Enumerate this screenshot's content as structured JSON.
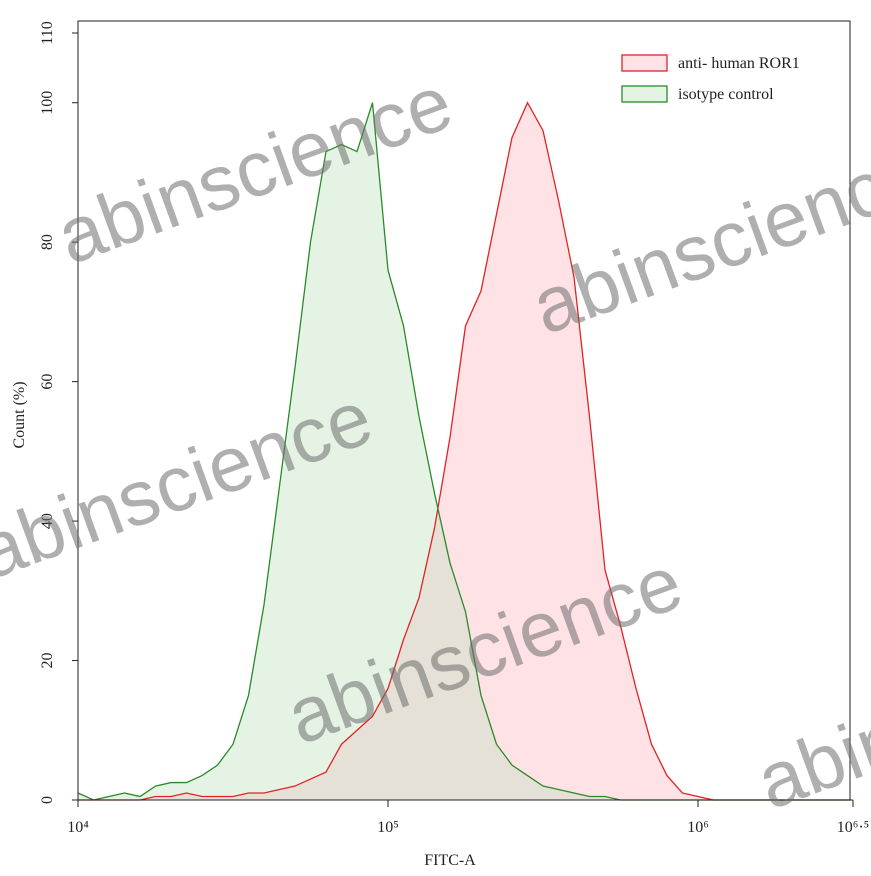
{
  "chart_data": {
    "type": "area",
    "xlabel": "FITC-A",
    "ylabel": "Count  (%)",
    "watermark": "abinscience",
    "xscale": "log",
    "legend": "upper right",
    "xlim": [
      10000,
      3162278
    ],
    "ylim": [
      0,
      110
    ],
    "xticks": [
      {
        "value": 10000,
        "label": "10⁴"
      },
      {
        "value": 100000,
        "label": "10⁵"
      },
      {
        "value": 1000000,
        "label": "10⁶"
      },
      {
        "value": 3162278,
        "label": "10⁶·⁵"
      }
    ],
    "yticks": [
      0,
      20,
      40,
      60,
      80,
      100,
      110
    ],
    "x": [
      10000,
      11220,
      12589,
      14125,
      15849,
      17783,
      19953,
      22387,
      25119,
      28184,
      31623,
      35481,
      39811,
      44668,
      50119,
      56234,
      63096,
      70795,
      79433,
      89125,
      100000,
      112202,
      125893,
      141254,
      158489,
      177828,
      199526,
      223872,
      251189,
      281838,
      316228,
      354813,
      398107,
      446684,
      501187,
      562341,
      630957,
      707946,
      794328,
      891251,
      1000000,
      1122018,
      1258925,
      1412538,
      1584893,
      1778279,
      1995262,
      2238721,
      2511886,
      2818383,
      3162278
    ],
    "series": [
      {
        "name": "anti- human ROR1",
        "color": "#e02424",
        "fill": "rgba(255,190,200,0.45)",
        "values": [
          0,
          0,
          0,
          0,
          0,
          0.5,
          0.5,
          1,
          0.5,
          0.5,
          0.5,
          1,
          1,
          1.5,
          2,
          3,
          4,
          8,
          10,
          12,
          16,
          23,
          29,
          39,
          52,
          68,
          73,
          84,
          95,
          100,
          96,
          86,
          75,
          55,
          33,
          25,
          16,
          8,
          3.5,
          1,
          0.5,
          0,
          0,
          0,
          0,
          0,
          0,
          0,
          0,
          0,
          0
        ]
      },
      {
        "name": "isotype control",
        "color": "#2a8a2a",
        "fill": "rgba(190,225,190,0.4)",
        "values": [
          1,
          0,
          0.5,
          1,
          0.5,
          2,
          2.5,
          2.5,
          3.5,
          5,
          8,
          15,
          28,
          45,
          62,
          80,
          93,
          94,
          93,
          100,
          76,
          68,
          55,
          44,
          34,
          27,
          15,
          8,
          5,
          3.5,
          2,
          1.5,
          1,
          0.5,
          0.5,
          0,
          0,
          0,
          0,
          0,
          0,
          0,
          0,
          0,
          0,
          0,
          0,
          0,
          0,
          0,
          0
        ]
      }
    ]
  }
}
